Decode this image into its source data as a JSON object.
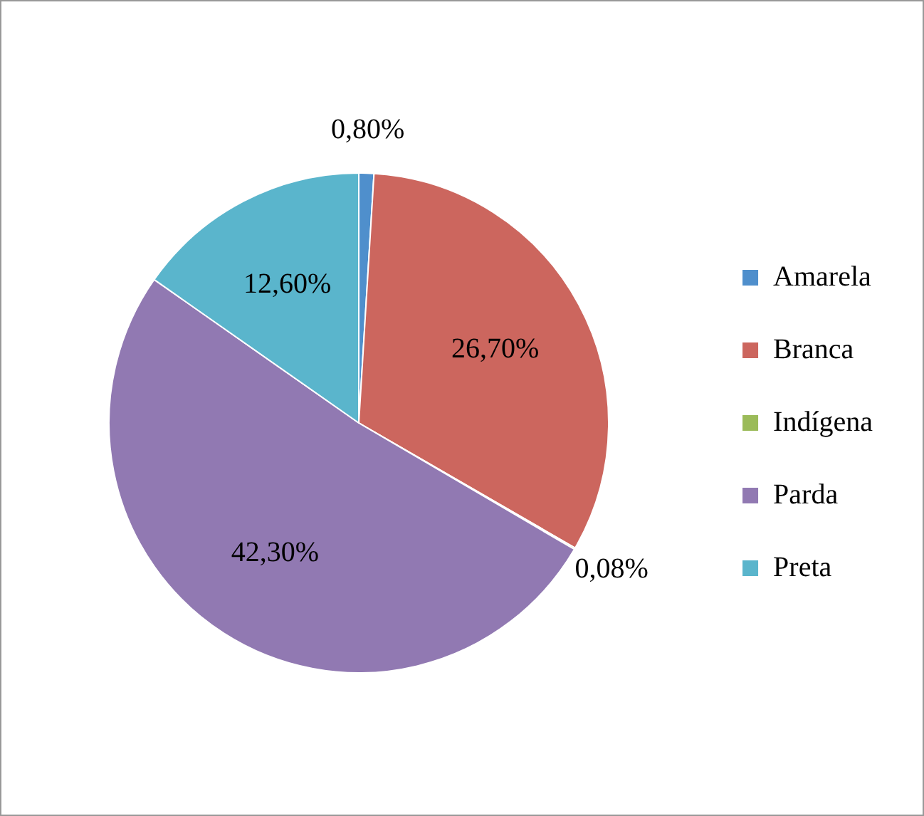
{
  "chart_data": {
    "type": "pie",
    "categories": [
      "Amarela",
      "Branca",
      "Indígena",
      "Parda",
      "Preta"
    ],
    "values": [
      0.8,
      26.7,
      0.08,
      42.3,
      12.6
    ],
    "value_labels": [
      "0,80%",
      "26,70%",
      "0,08%",
      "42,30%",
      "12,60%"
    ],
    "colors": [
      "#4f8fcc",
      "#cc665e",
      "#9bbb59",
      "#9179b2",
      "#5ab5cc"
    ],
    "legend": "right"
  }
}
